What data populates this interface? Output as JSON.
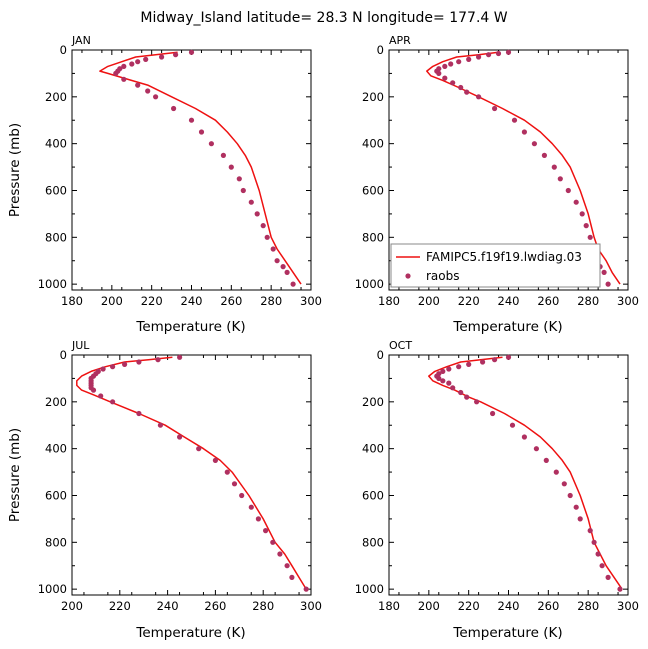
{
  "title": "Midway_Island   latitude= 28.3 N longitude= 177.4 W",
  "legend": {
    "model_label": "FAMIPC5.f19f19.lwdiag.03",
    "obs_label": "raobs",
    "placement": "inside APR panel, lower-right"
  },
  "colors": {
    "model": "#ee1111",
    "obs": "#b03060",
    "legend_frame": "#888888"
  },
  "chart_data": [
    {
      "type": "line",
      "panel": "JAN",
      "xlabel": "Temperature (K)",
      "ylabel": "Pressure (mb)",
      "xlim": [
        180,
        300
      ],
      "ylim": [
        1025,
        0
      ],
      "x_ticks": [
        180,
        200,
        220,
        240,
        260,
        280,
        300
      ],
      "x_tick_labels": [
        "180",
        "200",
        "220",
        "240",
        "260",
        "280",
        "300"
      ],
      "y_ticks": [
        0,
        200,
        400,
        600,
        800,
        1000
      ],
      "y_tick_labels": [
        "0",
        "200",
        "400",
        "600",
        "800",
        "1000"
      ],
      "series": [
        {
          "name": "FAMIPC5.f19f19.lwdiag.03",
          "kind": "line",
          "points": [
            [
              233,
              10
            ],
            [
              222,
              20
            ],
            [
              212,
              30
            ],
            [
              205,
              50
            ],
            [
              198,
              70
            ],
            [
              194,
              90
            ],
            [
              198,
              100
            ],
            [
              206,
              120
            ],
            [
              218,
              150
            ],
            [
              230,
              200
            ],
            [
              242,
              250
            ],
            [
              252,
              300
            ],
            [
              258,
              350
            ],
            [
              263,
              400
            ],
            [
              267,
              450
            ],
            [
              270,
              500
            ],
            [
              274,
              600
            ],
            [
              277,
              700
            ],
            [
              280,
              800
            ],
            [
              283,
              850
            ],
            [
              287,
              900
            ],
            [
              291,
              950
            ],
            [
              295,
              1000
            ]
          ]
        },
        {
          "name": "raobs",
          "kind": "points",
          "points": [
            [
              240,
              10
            ],
            [
              232,
              20
            ],
            [
              225,
              30
            ],
            [
              217,
              40
            ],
            [
              213,
              50
            ],
            [
              210,
              60
            ],
            [
              206,
              70
            ],
            [
              204,
              80
            ],
            [
              203,
              90
            ],
            [
              202,
              100
            ],
            [
              206,
              125
            ],
            [
              213,
              150
            ],
            [
              218,
              175
            ],
            [
              222,
              200
            ],
            [
              231,
              250
            ],
            [
              240,
              300
            ],
            [
              245,
              350
            ],
            [
              250,
              400
            ],
            [
              256,
              450
            ],
            [
              260,
              500
            ],
            [
              264,
              550
            ],
            [
              266,
              600
            ],
            [
              270,
              650
            ],
            [
              273,
              700
            ],
            [
              276,
              750
            ],
            [
              278,
              800
            ],
            [
              281,
              850
            ],
            [
              283,
              900
            ],
            [
              286,
              925
            ],
            [
              288,
              950
            ],
            [
              291,
              1000
            ]
          ]
        }
      ]
    },
    {
      "type": "line",
      "panel": "APR",
      "xlabel": "Temperature (K)",
      "ylabel": "",
      "xlim": [
        180,
        300
      ],
      "ylim": [
        1025,
        0
      ],
      "x_ticks": [
        180,
        200,
        220,
        240,
        260,
        280,
        300
      ],
      "x_tick_labels": [
        "180",
        "200",
        "220",
        "240",
        "260",
        "280",
        "300"
      ],
      "y_ticks": [
        0,
        200,
        400,
        600,
        800,
        1000
      ],
      "y_tick_labels": [
        "0",
        "200",
        "400",
        "600",
        "800",
        "1000"
      ],
      "series": [
        {
          "name": "FAMIPC5.f19f19.lwdiag.03",
          "kind": "line",
          "points": [
            [
              235,
              10
            ],
            [
              225,
              20
            ],
            [
              214,
              30
            ],
            [
              207,
              50
            ],
            [
              202,
              70
            ],
            [
              199,
              90
            ],
            [
              201,
              110
            ],
            [
              207,
              130
            ],
            [
              215,
              160
            ],
            [
              225,
              200
            ],
            [
              237,
              250
            ],
            [
              248,
              300
            ],
            [
              256,
              350
            ],
            [
              262,
              400
            ],
            [
              267,
              450
            ],
            [
              271,
              500
            ],
            [
              276,
              600
            ],
            [
              280,
              700
            ],
            [
              283,
              800
            ],
            [
              285,
              850
            ],
            [
              289,
              900
            ],
            [
              292,
              950
            ],
            [
              296,
              1000
            ]
          ]
        },
        {
          "name": "raobs",
          "kind": "points",
          "points": [
            [
              240,
              10
            ],
            [
              235,
              15
            ],
            [
              230,
              20
            ],
            [
              225,
              30
            ],
            [
              220,
              40
            ],
            [
              215,
              50
            ],
            [
              211,
              60
            ],
            [
              208,
              70
            ],
            [
              205,
              80
            ],
            [
              204,
              90
            ],
            [
              205,
              100
            ],
            [
              208,
              120
            ],
            [
              212,
              140
            ],
            [
              216,
              160
            ],
            [
              219,
              180
            ],
            [
              225,
              200
            ],
            [
              233,
              250
            ],
            [
              243,
              300
            ],
            [
              248,
              350
            ],
            [
              253,
              400
            ],
            [
              258,
              450
            ],
            [
              263,
              500
            ],
            [
              266,
              550
            ],
            [
              270,
              600
            ],
            [
              274,
              650
            ],
            [
              277,
              700
            ],
            [
              279,
              750
            ],
            [
              281,
              800
            ],
            [
              283,
              850
            ],
            [
              284,
              900
            ],
            [
              286,
              925
            ],
            [
              288,
              950
            ],
            [
              290,
              1000
            ]
          ]
        }
      ]
    },
    {
      "type": "line",
      "panel": "JUL",
      "xlabel": "Temperature (K)",
      "ylabel": "Pressure (mb)",
      "xlim": [
        200,
        300
      ],
      "ylim": [
        1025,
        0
      ],
      "x_ticks": [
        200,
        220,
        240,
        260,
        280,
        300
      ],
      "x_tick_labels": [
        "200",
        "220",
        "240",
        "260",
        "280",
        "300"
      ],
      "y_ticks": [
        0,
        200,
        400,
        600,
        800,
        1000
      ],
      "y_tick_labels": [
        "0",
        "200",
        "400",
        "600",
        "800",
        "1000"
      ],
      "series": [
        {
          "name": "FAMIPC5.f19f19.lwdiag.03",
          "kind": "line",
          "points": [
            [
              242,
              10
            ],
            [
              232,
              20
            ],
            [
              222,
              30
            ],
            [
              214,
              50
            ],
            [
              208,
              70
            ],
            [
              204,
              90
            ],
            [
              202,
              110
            ],
            [
              202,
              130
            ],
            [
              204,
              150
            ],
            [
              209,
              170
            ],
            [
              216,
              200
            ],
            [
              228,
              250
            ],
            [
              239,
              300
            ],
            [
              247,
              350
            ],
            [
              255,
              400
            ],
            [
              262,
              450
            ],
            [
              267,
              500
            ],
            [
              274,
              600
            ],
            [
              280,
              700
            ],
            [
              285,
              800
            ],
            [
              289,
              850
            ],
            [
              292,
              900
            ],
            [
              295,
              950
            ],
            [
              298,
              1000
            ]
          ]
        },
        {
          "name": "raobs",
          "kind": "points",
          "points": [
            [
              245,
              10
            ],
            [
              236,
              20
            ],
            [
              228,
              30
            ],
            [
              222,
              40
            ],
            [
              217,
              50
            ],
            [
              213,
              60
            ],
            [
              211,
              70
            ],
            [
              210,
              80
            ],
            [
              209,
              90
            ],
            [
              208,
              100
            ],
            [
              208,
              110
            ],
            [
              208,
              120
            ],
            [
              208,
              130
            ],
            [
              208,
              140
            ],
            [
              209,
              150
            ],
            [
              212,
              175
            ],
            [
              217,
              200
            ],
            [
              228,
              250
            ],
            [
              237,
              300
            ],
            [
              245,
              350
            ],
            [
              253,
              400
            ],
            [
              260,
              450
            ],
            [
              265,
              500
            ],
            [
              268,
              550
            ],
            [
              271,
              600
            ],
            [
              275,
              650
            ],
            [
              278,
              700
            ],
            [
              281,
              750
            ],
            [
              284,
              800
            ],
            [
              287,
              850
            ],
            [
              290,
              900
            ],
            [
              292,
              950
            ],
            [
              298,
              1000
            ]
          ]
        }
      ]
    },
    {
      "type": "line",
      "panel": "OCT",
      "xlabel": "Temperature (K)",
      "ylabel": "",
      "xlim": [
        180,
        300
      ],
      "ylim": [
        1025,
        0
      ],
      "x_ticks": [
        180,
        200,
        220,
        240,
        260,
        280,
        300
      ],
      "x_tick_labels": [
        "180",
        "200",
        "220",
        "240",
        "260",
        "280",
        "300"
      ],
      "y_ticks": [
        0,
        200,
        400,
        600,
        800,
        1000
      ],
      "y_tick_labels": [
        "0",
        "200",
        "400",
        "600",
        "800",
        "1000"
      ],
      "series": [
        {
          "name": "FAMIPC5.f19f19.lwdiag.03",
          "kind": "line",
          "points": [
            [
              237,
              10
            ],
            [
              226,
              20
            ],
            [
              216,
              30
            ],
            [
              209,
              50
            ],
            [
              203,
              70
            ],
            [
              200,
              90
            ],
            [
              202,
              110
            ],
            [
              207,
              130
            ],
            [
              213,
              150
            ],
            [
              220,
              180
            ],
            [
              226,
              200
            ],
            [
              238,
              250
            ],
            [
              248,
              300
            ],
            [
              256,
              350
            ],
            [
              262,
              400
            ],
            [
              267,
              450
            ],
            [
              271,
              500
            ],
            [
              276,
              600
            ],
            [
              280,
              700
            ],
            [
              283,
              800
            ],
            [
              286,
              850
            ],
            [
              289,
              900
            ],
            [
              293,
              950
            ],
            [
              297,
              1000
            ]
          ]
        },
        {
          "name": "raobs",
          "kind": "points",
          "points": [
            [
              240,
              10
            ],
            [
              233,
              20
            ],
            [
              227,
              30
            ],
            [
              220,
              40
            ],
            [
              215,
              50
            ],
            [
              210,
              60
            ],
            [
              207,
              70
            ],
            [
              205,
              80
            ],
            [
              204,
              90
            ],
            [
              205,
              100
            ],
            [
              207,
              110
            ],
            [
              210,
              120
            ],
            [
              212,
              140
            ],
            [
              216,
              160
            ],
            [
              219,
              180
            ],
            [
              224,
              200
            ],
            [
              232,
              250
            ],
            [
              242,
              300
            ],
            [
              248,
              350
            ],
            [
              254,
              400
            ],
            [
              259,
              450
            ],
            [
              264,
              500
            ],
            [
              268,
              550
            ],
            [
              271,
              600
            ],
            [
              274,
              650
            ],
            [
              276,
              700
            ],
            [
              281,
              750
            ],
            [
              283,
              800
            ],
            [
              285,
              850
            ],
            [
              287,
              900
            ],
            [
              290,
              950
            ],
            [
              296,
              1000
            ]
          ]
        }
      ]
    }
  ]
}
